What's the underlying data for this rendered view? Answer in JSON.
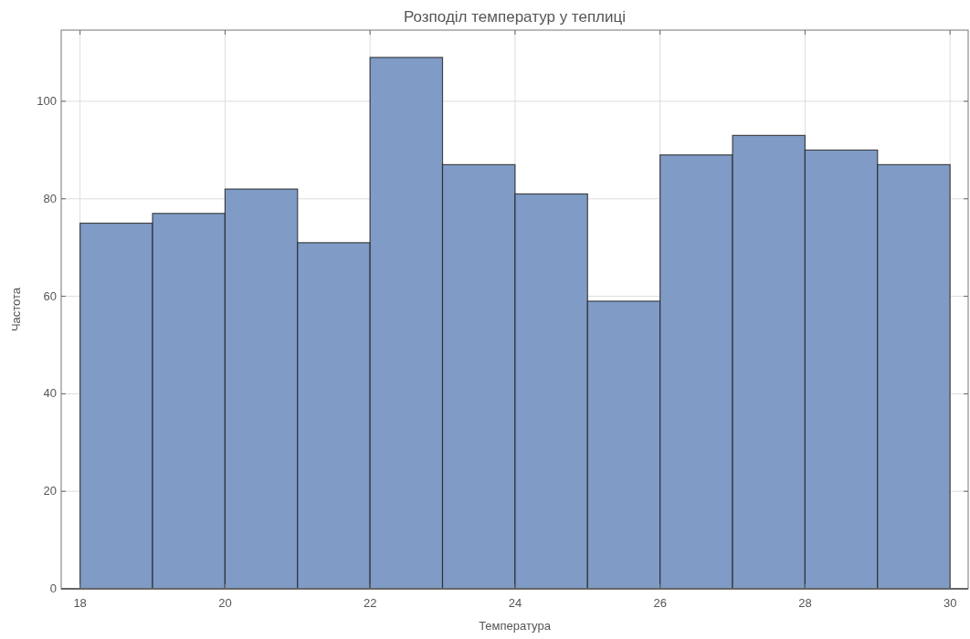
{
  "chart_data": {
    "type": "histogram",
    "title": "Розподіл температур у теплиці",
    "xlabel": "Температура",
    "ylabel": "Частота",
    "bins": [
      18,
      19,
      20,
      21,
      22,
      23,
      24,
      25,
      26,
      27,
      28,
      29,
      30
    ],
    "values": [
      75,
      77,
      82,
      71,
      109,
      87,
      81,
      59,
      89,
      93,
      90,
      87
    ],
    "color": "#7f9bc6",
    "xlim": [
      17.74,
      30.25
    ],
    "xticks": [
      18,
      20,
      22,
      24,
      26,
      28,
      30
    ],
    "ylim": [
      0,
      114.6
    ],
    "yticks": [
      0,
      20,
      40,
      60,
      80,
      100
    ],
    "grid": true
  }
}
